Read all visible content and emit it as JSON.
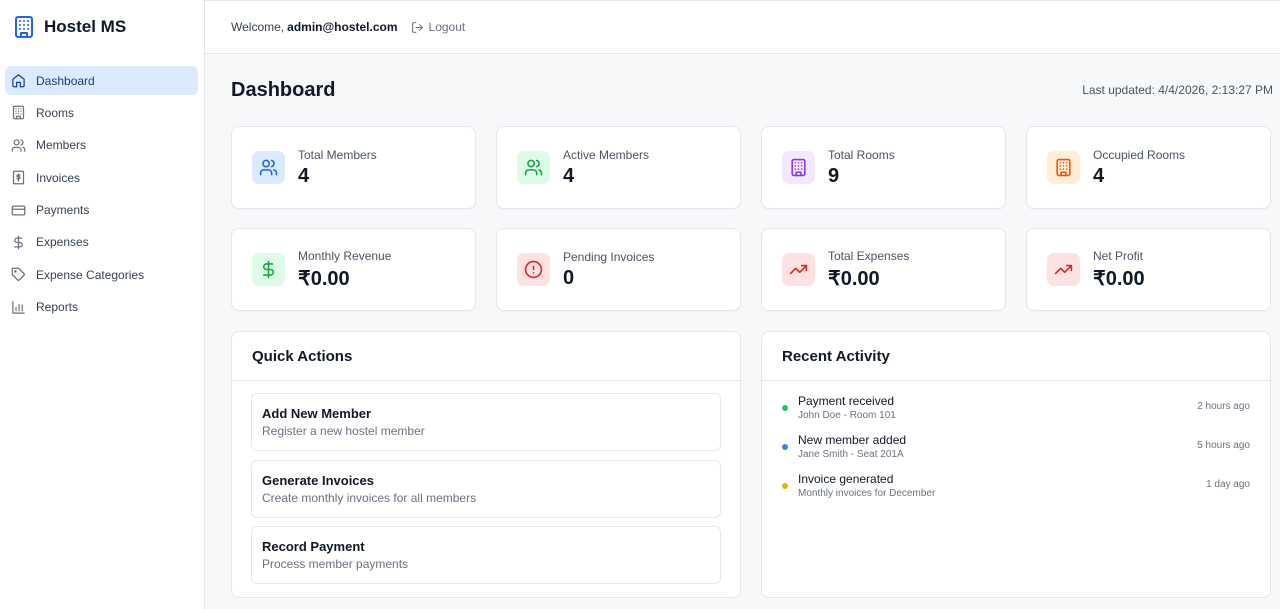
{
  "brand": {
    "title": "Hostel MS",
    "icon": "building-icon"
  },
  "sidebar": {
    "items": [
      {
        "label": "Dashboard",
        "icon": "home-icon",
        "active": true
      },
      {
        "label": "Rooms",
        "icon": "building-icon"
      },
      {
        "label": "Members",
        "icon": "users-icon"
      },
      {
        "label": "Invoices",
        "icon": "receipt-icon"
      },
      {
        "label": "Payments",
        "icon": "credit-card-icon"
      },
      {
        "label": "Expenses",
        "icon": "dollar-icon"
      },
      {
        "label": "Expense Categories",
        "icon": "tag-icon"
      },
      {
        "label": "Reports",
        "icon": "bar-chart-icon"
      }
    ]
  },
  "header": {
    "welcome_prefix": "Welcome,",
    "user_email": "admin@hostel.com",
    "logout_label": "Logout"
  },
  "main": {
    "title": "Dashboard",
    "last_updated": "Last updated: 4/4/2026, 2:13:27 PM",
    "stats": [
      {
        "label": "Total Members",
        "value": "4",
        "icon": "users-icon",
        "color": "#2563eb",
        "bg": "#dbeafe"
      },
      {
        "label": "Active Members",
        "value": "4",
        "icon": "users-icon",
        "color": "#16a34a",
        "bg": "#dcfce7"
      },
      {
        "label": "Total Rooms",
        "value": "9",
        "icon": "building-icon",
        "color": "#9333ea",
        "bg": "#f3e8ff"
      },
      {
        "label": "Occupied Rooms",
        "value": "4",
        "icon": "building-icon",
        "color": "#ea580c",
        "bg": "#ffedd5"
      },
      {
        "label": "Monthly Revenue",
        "value": "₹0.00",
        "icon": "dollar-icon",
        "color": "#16a34a",
        "bg": "#dcfce7"
      },
      {
        "label": "Pending Invoices",
        "value": "0",
        "icon": "alert-circle-icon",
        "color": "#dc2626",
        "bg": "#fee2e2"
      },
      {
        "label": "Total Expenses",
        "value": "₹0.00",
        "icon": "trending-up-icon",
        "color": "#dc2626",
        "bg": "#fee2e2"
      },
      {
        "label": "Net Profit",
        "value": "₹0.00",
        "icon": "trending-up-icon",
        "color": "#dc2626",
        "bg": "#fee2e2"
      }
    ],
    "quick_actions": {
      "title": "Quick Actions",
      "items": [
        {
          "title": "Add New Member",
          "desc": "Register a new hostel member"
        },
        {
          "title": "Generate Invoices",
          "desc": "Create monthly invoices for all members"
        },
        {
          "title": "Record Payment",
          "desc": "Process member payments"
        }
      ]
    },
    "recent_activity": {
      "title": "Recent Activity",
      "items": [
        {
          "title": "Payment received",
          "sub": "John Doe - Room 101",
          "time": "2 hours ago",
          "color": "#22c55e"
        },
        {
          "title": "New member added",
          "sub": "Jane Smith - Seat 201A",
          "time": "5 hours ago",
          "color": "#3b82f6"
        },
        {
          "title": "Invoice generated",
          "sub": "Monthly invoices for December",
          "time": "1 day ago",
          "color": "#eab308"
        }
      ]
    }
  }
}
